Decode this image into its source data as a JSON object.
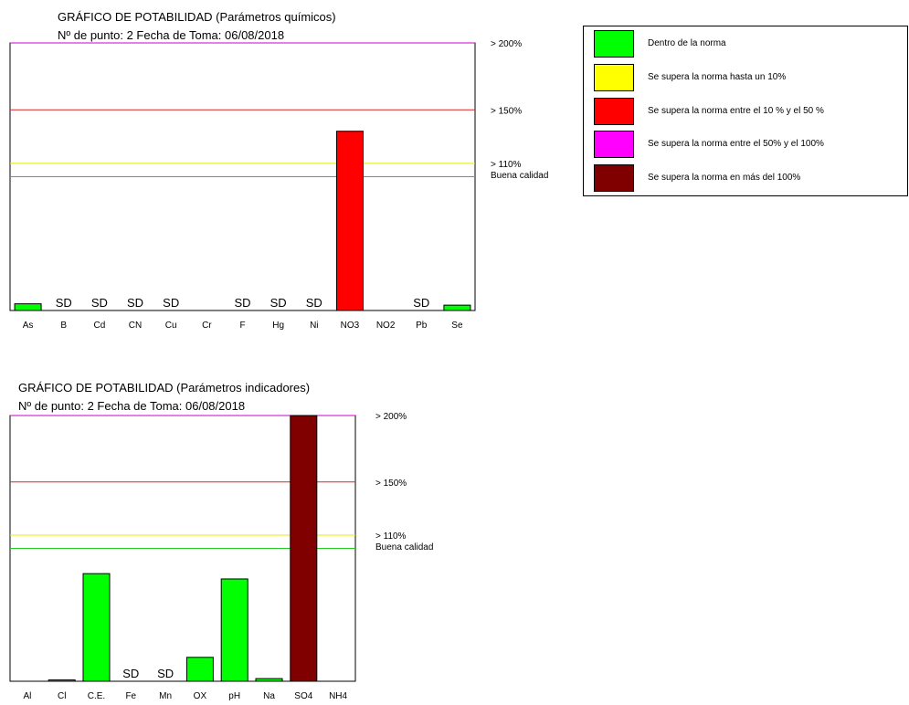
{
  "chart_data": [
    {
      "type": "bar",
      "title": "GRÁFICO DE POTABILIDAD  (Parámetros químicos)",
      "subtitle": "Nº de punto: 2 Fecha de Toma: 06/08/2018",
      "categories": [
        "As",
        "B",
        "Cd",
        "CN",
        "Cu",
        "Cr",
        "F",
        "Hg",
        "Ni",
        "NO3",
        "NO2",
        "Pb",
        "Se"
      ],
      "values": [
        5,
        null,
        null,
        null,
        null,
        0,
        null,
        null,
        null,
        134,
        0,
        null,
        4
      ],
      "bar_colors": [
        "#00ff00",
        null,
        null,
        null,
        null,
        "#00ff00",
        null,
        null,
        null,
        "#ff0000",
        "#00ff00",
        null,
        "#00ff00"
      ],
      "no_data_label": "SD",
      "ylim": [
        0,
        200
      ],
      "reference_lines": [
        {
          "value": 200,
          "label": "> 200%",
          "color": "#cc00cc"
        },
        {
          "value": 150,
          "label": "> 150%",
          "color": "#dd2222"
        },
        {
          "value": 110,
          "label": "> 110%",
          "color": "#e8e800"
        },
        {
          "value": 100,
          "label": "Buena calidad",
          "color": "#22cc22"
        }
      ]
    },
    {
      "type": "bar",
      "title": "GRÁFICO DE POTABILIDAD  (Parámetros indicadores)",
      "subtitle": "Nº de punto: 2 Fecha de Toma: 06/08/2018",
      "categories": [
        "Al",
        "Cl",
        "C.E.",
        "Fe",
        "Mn",
        "OX",
        "pH",
        "Na",
        "SO4",
        "NH4"
      ],
      "values": [
        0,
        1,
        81,
        null,
        null,
        18,
        77,
        2,
        200,
        0
      ],
      "bar_colors": [
        "#00ff00",
        "#00ff00",
        "#00ff00",
        null,
        null,
        "#00ff00",
        "#00ff00",
        "#00ff00",
        "#800000",
        "#00ff00"
      ],
      "no_data_label": "SD",
      "ylim": [
        0,
        200
      ],
      "reference_lines": [
        {
          "value": 200,
          "label": "> 200%",
          "color": "#cc00cc"
        },
        {
          "value": 150,
          "label": "> 150%",
          "color": "#dd2222"
        },
        {
          "value": 110,
          "label": "> 110%",
          "color": "#e8e800"
        },
        {
          "value": 100,
          "label": "Buena calidad",
          "color": "#22cc22"
        }
      ]
    }
  ],
  "legend": [
    {
      "label": "Dentro de la norma",
      "color": "#00ff00"
    },
    {
      "label": "Se supera la norma hasta un 10%",
      "color": "#ffff00"
    },
    {
      "label": "Se supera la norma entre el 10 % y el 50 %",
      "color": "#ff0000"
    },
    {
      "label": "Se supera la norma entre el 50% y el 100%",
      "color": "#ff00ff"
    },
    {
      "label": "Se supera la norma en más del 100%",
      "color": "#800000"
    }
  ]
}
